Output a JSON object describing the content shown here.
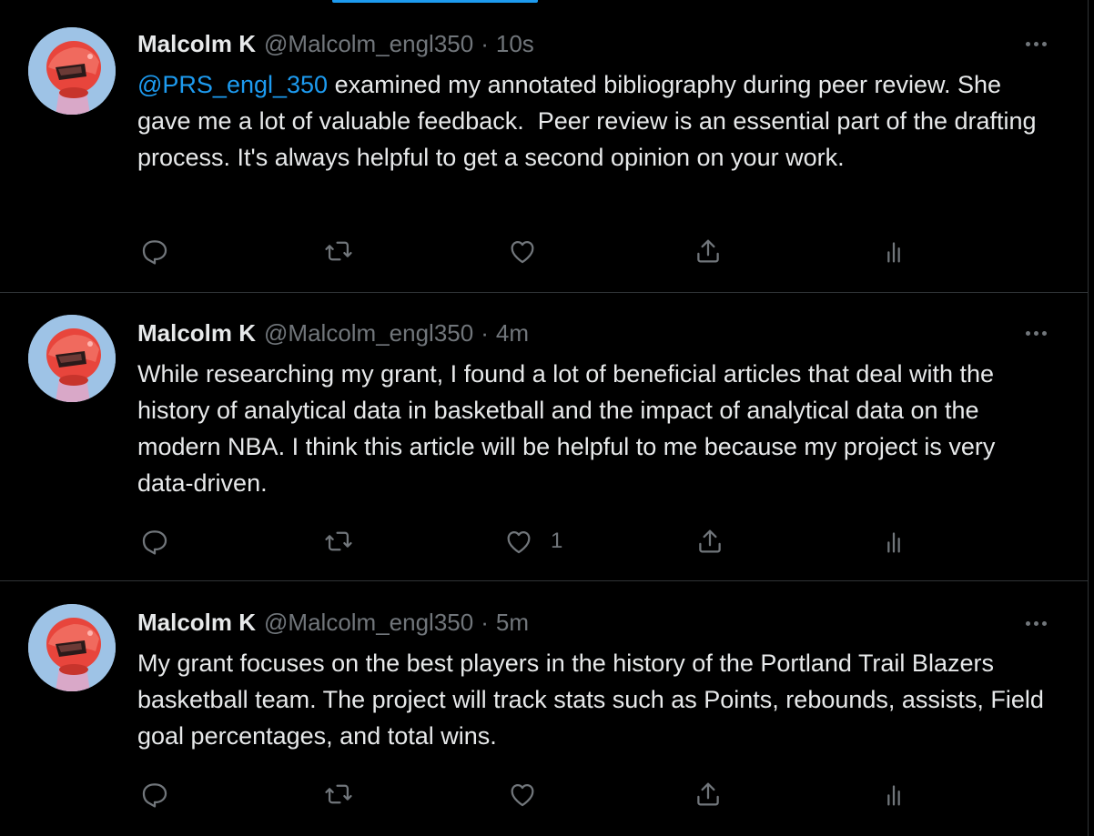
{
  "theme": {
    "background": "#000000",
    "text_primary": "#e7e9ea",
    "text_secondary": "#71767b",
    "accent": "#1d9bf0",
    "divider": "#2f3336"
  },
  "tweets": [
    {
      "author_name": "Malcolm K",
      "author_handle": "@Malcolm_engl350",
      "separator": "·",
      "timestamp": "10s",
      "mention": "@PRS_engl_350",
      "text": " examined my annotated bibliography during peer review. She gave me a lot of valuable feedback.  Peer review is an essential part of the drafting process. It's always helpful to get a second opinion on your work.",
      "like_count": "",
      "icons": [
        "reply-icon",
        "retweet-icon",
        "like-icon",
        "share-icon",
        "analytics-icon"
      ]
    },
    {
      "author_name": "Malcolm K",
      "author_handle": "@Malcolm_engl350",
      "separator": "·",
      "timestamp": "4m",
      "mention": "",
      "text": "While researching my grant, I found a lot of beneficial articles that deal with the history of analytical data in basketball and the impact of analytical data on the modern NBA. I think this article will be helpful to me because my project is very data-driven.",
      "like_count": "1",
      "icons": [
        "reply-icon",
        "retweet-icon",
        "like-icon",
        "share-icon",
        "analytics-icon"
      ]
    },
    {
      "author_name": "Malcolm K",
      "author_handle": "@Malcolm_engl350",
      "separator": "·",
      "timestamp": "5m",
      "mention": "",
      "text": "My grant focuses on the best players in the history of the Portland Trail Blazers basketball team. The project will track stats such as Points, rebounds, assists, Field goal percentages, and total wins.",
      "like_count": "",
      "icons": [
        "reply-icon",
        "retweet-icon",
        "like-icon",
        "share-icon",
        "analytics-icon"
      ]
    }
  ]
}
